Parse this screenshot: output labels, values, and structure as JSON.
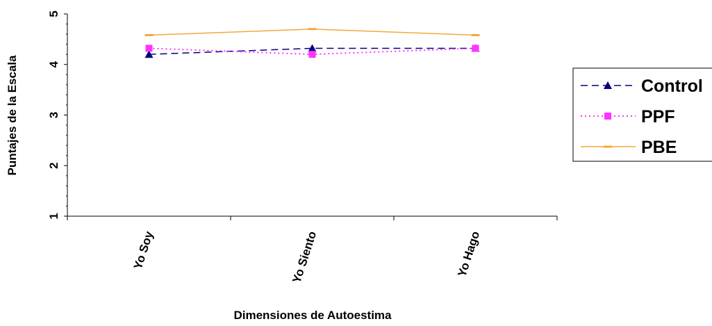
{
  "chart_data": {
    "type": "line",
    "categories": [
      "Yo Soy",
      "Yo Siento",
      "Yo Hago"
    ],
    "series": [
      {
        "name": "Control",
        "values": [
          4.2,
          4.32,
          4.32
        ],
        "color": "#000080",
        "dash": "dashed",
        "marker": "triangle"
      },
      {
        "name": "PPF",
        "values": [
          4.32,
          4.2,
          4.32
        ],
        "color": "#FF33FF",
        "dash": "dotted",
        "marker": "square"
      },
      {
        "name": "PBE",
        "values": [
          4.58,
          4.7,
          4.58
        ],
        "color": "#F4A83A",
        "dash": "solid",
        "marker": "dash"
      }
    ],
    "yticks": [
      "1",
      "2",
      "3",
      "4",
      "5"
    ],
    "ylim": [
      1,
      5
    ],
    "xlabel": "Dimensiones de Autoestima",
    "ylabel": "Puntajes de la Escala",
    "legend_position": "right",
    "grid": false
  }
}
